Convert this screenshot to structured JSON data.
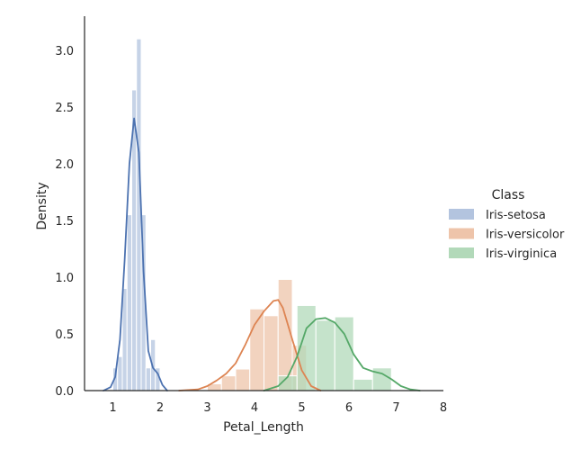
{
  "chart_data": {
    "type": "histogram_kde",
    "xlabel": "Petal_Length",
    "ylabel": "Density",
    "xlim": [
      0.4,
      8.0
    ],
    "ylim": [
      0,
      3.3
    ],
    "xticks": [
      1,
      2,
      3,
      4,
      5,
      6,
      7,
      8
    ],
    "yticks": [
      0.0,
      0.5,
      1.0,
      1.5,
      2.0,
      2.5,
      3.0
    ],
    "xtick_labels": [
      "1",
      "2",
      "3",
      "4",
      "5",
      "6",
      "7",
      "8"
    ],
    "ytick_labels": [
      "0.0",
      "0.5",
      "1.0",
      "1.5",
      "2.0",
      "2.5",
      "3.0"
    ],
    "grid": false,
    "legend": {
      "title": "Class",
      "placement": "right"
    },
    "series": [
      {
        "name": "Iris-setosa",
        "bar_color": "#b3c4df",
        "kde_color": "#4c72b0",
        "bins": [
          {
            "x0": 1.0,
            "x1": 1.1,
            "density": 0.2
          },
          {
            "x0": 1.1,
            "x1": 1.2,
            "density": 0.3
          },
          {
            "x0": 1.2,
            "x1": 1.3,
            "density": 0.9
          },
          {
            "x0": 1.3,
            "x1": 1.4,
            "density": 1.55
          },
          {
            "x0": 1.4,
            "x1": 1.5,
            "density": 2.65
          },
          {
            "x0": 1.5,
            "x1": 1.6,
            "density": 3.1
          },
          {
            "x0": 1.6,
            "x1": 1.7,
            "density": 1.55
          },
          {
            "x0": 1.7,
            "x1": 1.8,
            "density": 0.2
          },
          {
            "x0": 1.8,
            "x1": 1.9,
            "density": 0.45
          },
          {
            "x0": 1.9,
            "x1": 2.0,
            "density": 0.2
          }
        ],
        "kde": [
          [
            0.8,
            0.0
          ],
          [
            0.95,
            0.03
          ],
          [
            1.05,
            0.12
          ],
          [
            1.15,
            0.45
          ],
          [
            1.25,
            1.15
          ],
          [
            1.35,
            2.0
          ],
          [
            1.45,
            2.4
          ],
          [
            1.55,
            2.1
          ],
          [
            1.65,
            1.05
          ],
          [
            1.75,
            0.35
          ],
          [
            1.85,
            0.2
          ],
          [
            1.95,
            0.15
          ],
          [
            2.05,
            0.05
          ],
          [
            2.15,
            0.0
          ]
        ]
      },
      {
        "name": "Iris-versicolor",
        "bar_color": "#eec4aa",
        "kde_color": "#dd8452",
        "bins": [
          {
            "x0": 3.0,
            "x1": 3.3,
            "density": 0.06
          },
          {
            "x0": 3.3,
            "x1": 3.6,
            "density": 0.13
          },
          {
            "x0": 3.6,
            "x1": 3.9,
            "density": 0.19
          },
          {
            "x0": 3.9,
            "x1": 4.2,
            "density": 0.72
          },
          {
            "x0": 4.2,
            "x1": 4.5,
            "density": 0.66
          },
          {
            "x0": 4.5,
            "x1": 4.8,
            "density": 0.98
          },
          {
            "x0": 4.8,
            "x1": 5.1,
            "density": 0.4
          }
        ],
        "kde": [
          [
            2.4,
            0.0
          ],
          [
            2.8,
            0.01
          ],
          [
            3.0,
            0.04
          ],
          [
            3.2,
            0.09
          ],
          [
            3.4,
            0.15
          ],
          [
            3.6,
            0.24
          ],
          [
            3.8,
            0.4
          ],
          [
            4.0,
            0.58
          ],
          [
            4.2,
            0.7
          ],
          [
            4.4,
            0.79
          ],
          [
            4.5,
            0.8
          ],
          [
            4.6,
            0.73
          ],
          [
            4.8,
            0.45
          ],
          [
            5.0,
            0.18
          ],
          [
            5.2,
            0.04
          ],
          [
            5.4,
            0.0
          ]
        ]
      },
      {
        "name": "Iris-virginica",
        "bar_color": "#b2d9b9",
        "kde_color": "#55a868",
        "bins": [
          {
            "x0": 4.5,
            "x1": 4.9,
            "density": 0.13
          },
          {
            "x0": 4.9,
            "x1": 5.3,
            "density": 0.75
          },
          {
            "x0": 5.3,
            "x1": 5.7,
            "density": 0.62
          },
          {
            "x0": 5.7,
            "x1": 6.1,
            "density": 0.65
          },
          {
            "x0": 6.1,
            "x1": 6.5,
            "density": 0.1
          },
          {
            "x0": 6.5,
            "x1": 6.9,
            "density": 0.2
          }
        ],
        "kde": [
          [
            4.2,
            0.0
          ],
          [
            4.5,
            0.04
          ],
          [
            4.7,
            0.12
          ],
          [
            4.9,
            0.3
          ],
          [
            5.1,
            0.55
          ],
          [
            5.3,
            0.63
          ],
          [
            5.5,
            0.64
          ],
          [
            5.7,
            0.6
          ],
          [
            5.9,
            0.5
          ],
          [
            6.1,
            0.32
          ],
          [
            6.3,
            0.2
          ],
          [
            6.5,
            0.17
          ],
          [
            6.7,
            0.15
          ],
          [
            6.9,
            0.1
          ],
          [
            7.1,
            0.04
          ],
          [
            7.3,
            0.01
          ],
          [
            7.5,
            0.0
          ]
        ]
      }
    ]
  }
}
